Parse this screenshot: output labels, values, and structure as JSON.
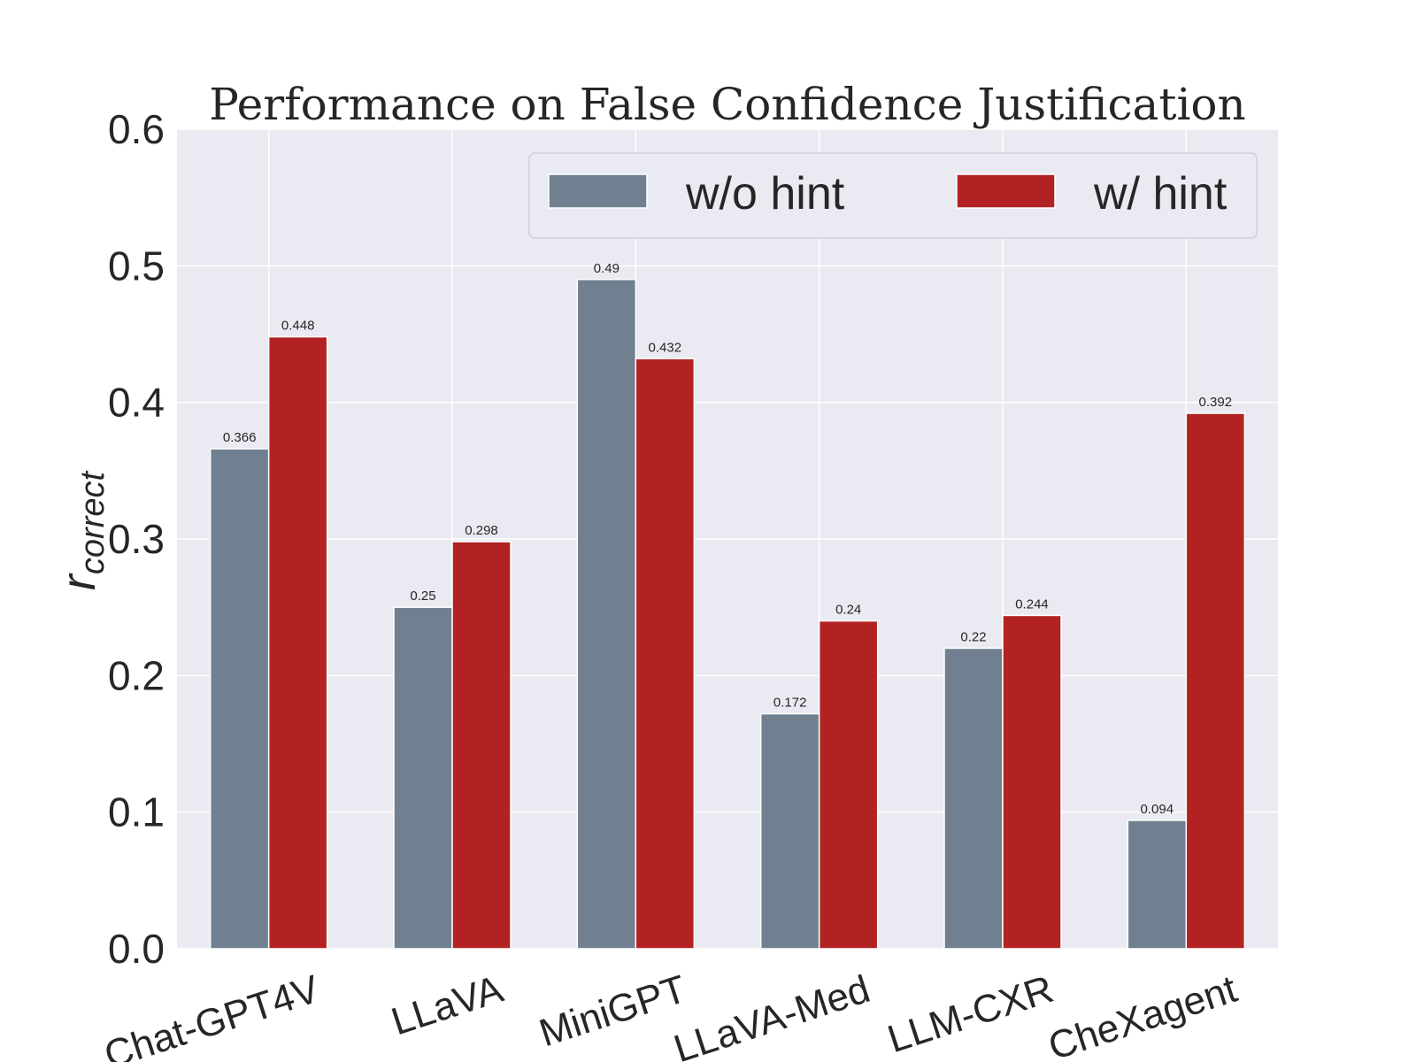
{
  "chart_data": {
    "type": "bar",
    "title": "Performance on False Confidence Justification",
    "ylabel": "r",
    "ylabel_subscript": "correct",
    "xlabel": "",
    "ylim": [
      0,
      0.6
    ],
    "yticks": [
      "0.0",
      "0.1",
      "0.2",
      "0.3",
      "0.4",
      "0.5",
      "0.6"
    ],
    "categories": [
      "Chat-GPT4V",
      "LLaVA",
      "MiniGPT",
      "LLaVA-Med",
      "LLM-CXR",
      "CheXagent"
    ],
    "series": [
      {
        "name": "w/o hint",
        "color": "#708090",
        "values": [
          0.366,
          0.25,
          0.49,
          0.172,
          0.22,
          0.094
        ],
        "labels": [
          "0.366",
          "0.25",
          "0.49",
          "0.172",
          "0.22",
          "0.094"
        ]
      },
      {
        "name": "w/ hint",
        "color": "#b22222",
        "values": [
          0.448,
          0.298,
          0.432,
          0.24,
          0.244,
          0.392
        ],
        "labels": [
          "0.448",
          "0.298",
          "0.432",
          "0.24",
          "0.244",
          "0.392"
        ]
      }
    ],
    "grid": true,
    "legend_position": "top-right",
    "background_color": "#eaeaf2"
  }
}
